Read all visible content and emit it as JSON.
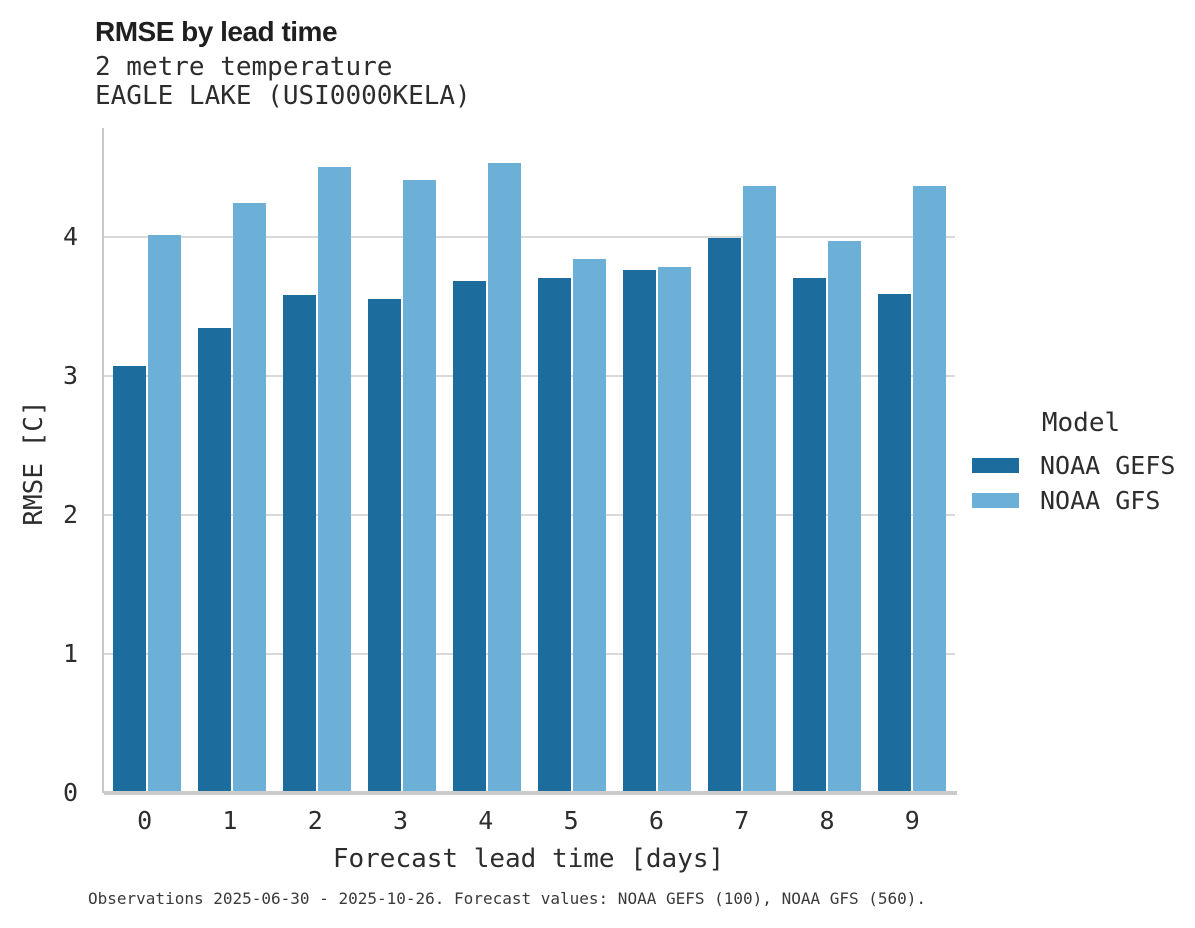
{
  "header": {
    "title": "RMSE by lead time",
    "subtitle_line1": "2 metre temperature",
    "subtitle_line2": "EAGLE LAKE (USI0000KELA)"
  },
  "chart_data": {
    "type": "bar",
    "title": "RMSE by lead time",
    "subtitle": [
      "2 metre temperature",
      "EAGLE LAKE (USI0000KELA)"
    ],
    "categories": [
      "0",
      "1",
      "2",
      "3",
      "4",
      "5",
      "6",
      "7",
      "8",
      "9"
    ],
    "series": [
      {
        "name": "NOAA GEFS",
        "color": "#1c6d9e",
        "values": [
          3.07,
          3.34,
          3.58,
          3.55,
          3.68,
          3.7,
          3.76,
          3.99,
          3.7,
          3.59
        ]
      },
      {
        "name": "NOAA GFS",
        "color": "#6cb0d8",
        "values": [
          4.01,
          4.24,
          4.5,
          4.41,
          4.53,
          3.84,
          3.78,
          4.36,
          3.97,
          4.36
        ]
      }
    ],
    "xlabel": "Forecast lead time [days]",
    "ylabel": "RMSE [C]",
    "ylim": [
      0,
      4.78
    ],
    "yticks": [
      0,
      1,
      2,
      3,
      4
    ],
    "grid": "horizontal-major",
    "legend_title": "Model",
    "legend_position": "right-center"
  },
  "legend": {
    "title": "Model",
    "items": [
      {
        "label": "NOAA GEFS",
        "color": "#1c6d9e"
      },
      {
        "label": "NOAA GFS",
        "color": "#6cb0d8"
      }
    ]
  },
  "footer": {
    "caption": "Observations 2025-06-30 - 2025-10-26. Forecast values: NOAA GEFS (100), NOAA GFS (560)."
  },
  "colors": {
    "background": "#ffffff",
    "gridline": "#d9d9d9",
    "axis_line": "#cbcbcb",
    "text": "#2d2d2d",
    "series_dark_blue": "#1c6d9e",
    "series_light_blue": "#6cb0d8"
  }
}
